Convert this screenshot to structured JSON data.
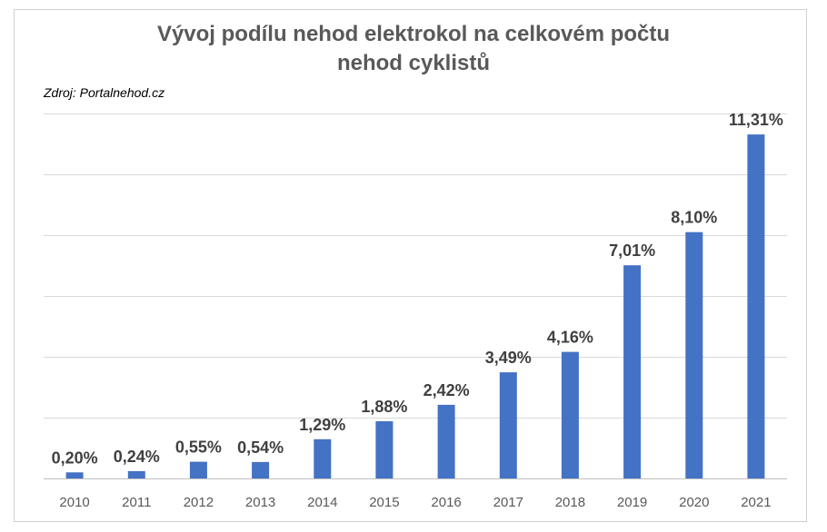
{
  "chart_data": {
    "type": "bar",
    "title": "Vývoj podílu nehod elektrokol na celkovém počtu nehod cyklistů",
    "title_lines": [
      "Vývoj podílu nehod elektrokol na celkovém počtu",
      "nehod cyklistů"
    ],
    "source": "Zdroj: Portalnehod.cz",
    "categories": [
      "2010",
      "2011",
      "2012",
      "2013",
      "2014",
      "2015",
      "2016",
      "2017",
      "2018",
      "2019",
      "2020",
      "2021"
    ],
    "values": [
      0.2,
      0.24,
      0.55,
      0.54,
      1.29,
      1.88,
      2.42,
      3.49,
      4.16,
      7.01,
      8.1,
      11.31
    ],
    "value_labels": [
      "0,20%",
      "0,24%",
      "0,55%",
      "0,54%",
      "1,29%",
      "1,88%",
      "2,42%",
      "3,49%",
      "4,16%",
      "7,01%",
      "8,10%",
      "11,31%"
    ],
    "ylim": [
      0,
      12
    ],
    "gridlines": [
      0,
      2,
      4,
      6,
      8,
      10,
      12
    ],
    "grid": true,
    "legend": "none",
    "bar_color": "#4472c4"
  }
}
